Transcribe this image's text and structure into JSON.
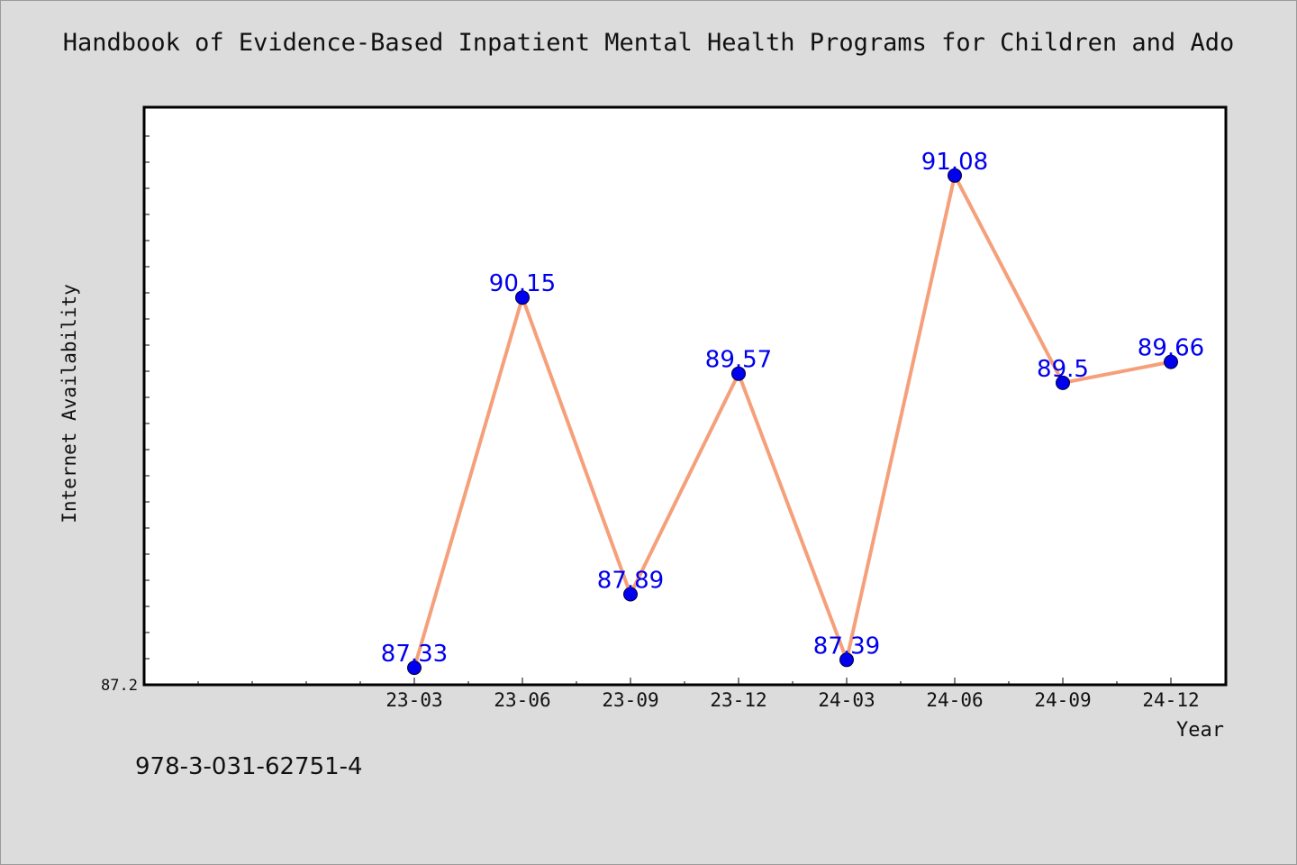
{
  "chart_data": {
    "type": "line",
    "title": "Handbook of Evidence-Based Inpatient Mental Health Programs for Children and Ado",
    "xlabel": "Year",
    "ylabel": "Internet Availability",
    "categories": [
      "23-03",
      "23-06",
      "23-09",
      "23-12",
      "24-03",
      "24-06",
      "24-09",
      "24-12"
    ],
    "series": [
      {
        "values": [
          87.33,
          90.15,
          87.89,
          89.57,
          87.39,
          91.08,
          89.5,
          89.66
        ]
      }
    ],
    "data_labels": [
      "87.33",
      "90.15",
      "87.89",
      "89.57",
      "87.39",
      "91.08",
      "89.5",
      "89.66"
    ],
    "ytick_labels": [
      "87.2"
    ],
    "ylim": [
      87.2,
      91.6
    ],
    "grid": false,
    "line_color": "#f5a07a",
    "marker_color": "#0000ee",
    "label_color": "#0000ee"
  },
  "footer": {
    "code": "978-3-031-62751-4"
  }
}
